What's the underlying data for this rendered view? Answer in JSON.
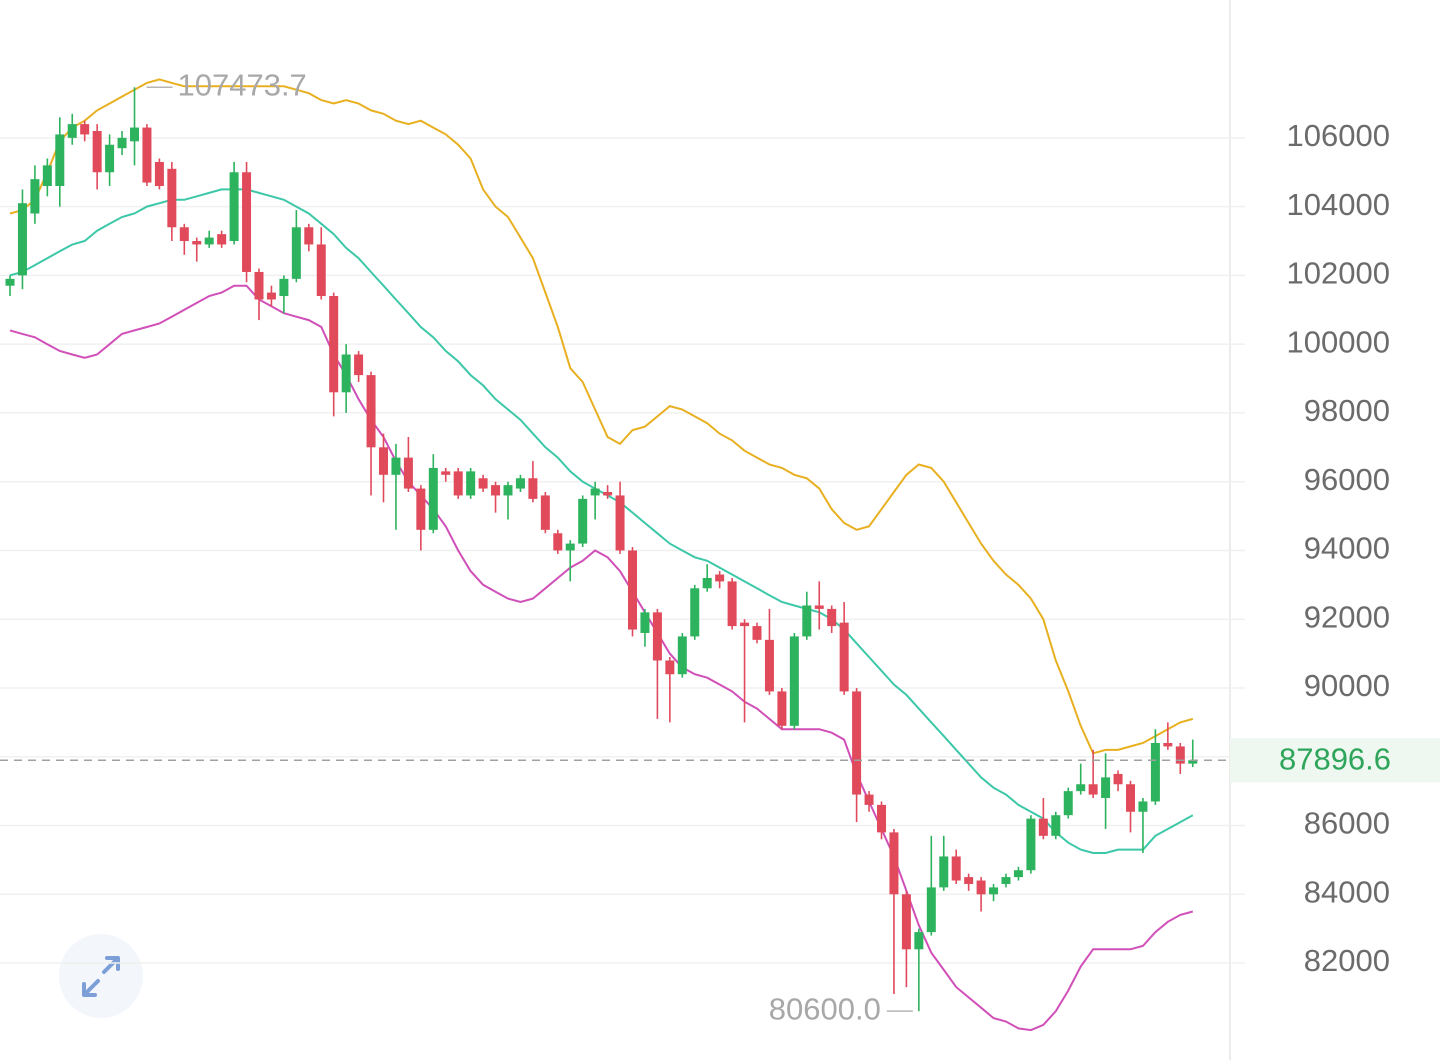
{
  "chart_data": {
    "type": "candlestick",
    "up_color": "#2db35d",
    "down_color": "#e04a5b",
    "open": [
      101700,
      102000,
      103800,
      104600,
      104600,
      106000,
      106400,
      106200,
      105000,
      105700,
      105900,
      106300,
      105300,
      105100,
      103400,
      103000,
      102900,
      103200,
      103000,
      105000,
      102100,
      101500,
      101400,
      101900,
      103400,
      102900,
      101400,
      98600,
      99700,
      99100,
      97000,
      96200,
      96700,
      95800,
      94600,
      96300,
      96300,
      95600,
      96100,
      95900,
      95600,
      95800,
      96100,
      95600,
      94500,
      94000,
      94200,
      95600,
      95700,
      95600,
      94000,
      91600,
      92200,
      90800,
      90400,
      91500,
      92900,
      93300,
      93100,
      91900,
      91800,
      91400,
      89900,
      88900,
      91500,
      92400,
      92300,
      91900,
      89900,
      86900,
      86600,
      85800,
      84000,
      82400,
      82900,
      84200,
      85100,
      84500,
      84400,
      84000,
      84300,
      84500,
      84700,
      86200,
      85700,
      86300,
      87000,
      87200,
      86800,
      87500,
      87200,
      86400,
      86700,
      88400,
      88300,
      87800
    ],
    "close": [
      101900,
      104100,
      104800,
      105200,
      106100,
      106400,
      106100,
      105000,
      105800,
      106000,
      106300,
      104700,
      104600,
      103400,
      103000,
      102900,
      103100,
      102900,
      105000,
      102100,
      101300,
      101300,
      101900,
      103400,
      102900,
      101400,
      98600,
      99700,
      99100,
      97000,
      96200,
      96700,
      95800,
      94600,
      96400,
      96200,
      95600,
      96300,
      95800,
      95600,
      95900,
      96100,
      95500,
      94600,
      94000,
      94200,
      95500,
      95800,
      95600,
      94000,
      91700,
      92200,
      90800,
      90400,
      91500,
      92900,
      93200,
      93100,
      91800,
      91800,
      91400,
      89900,
      88900,
      91500,
      92400,
      92300,
      91800,
      89900,
      86900,
      86600,
      85800,
      84000,
      82400,
      82900,
      84200,
      85100,
      84400,
      84300,
      84000,
      84200,
      84500,
      84700,
      86200,
      85700,
      86300,
      87000,
      87200,
      86900,
      87400,
      87200,
      86400,
      86700,
      88400,
      88300,
      87800,
      87896.6
    ],
    "high": [
      102000,
      104500,
      105200,
      105400,
      106600,
      106700,
      106500,
      106400,
      106100,
      106200,
      107473.7,
      106400,
      105400,
      105300,
      103500,
      103100,
      103300,
      103300,
      105300,
      105300,
      102200,
      101700,
      102000,
      103900,
      103500,
      103400,
      101500,
      100000,
      99800,
      99200,
      97400,
      97100,
      97300,
      95900,
      96800,
      96400,
      96400,
      96400,
      96200,
      96000,
      96000,
      96200,
      96600,
      95700,
      94600,
      94300,
      95600,
      96000,
      95900,
      96000,
      94100,
      92300,
      92300,
      90900,
      91600,
      93000,
      93600,
      93400,
      93200,
      92000,
      91900,
      92300,
      90000,
      91600,
      92800,
      93100,
      92400,
      92500,
      90000,
      87000,
      86700,
      85900,
      84100,
      83000,
      85700,
      85700,
      85300,
      84600,
      84500,
      84300,
      84600,
      84800,
      86300,
      86800,
      86400,
      87100,
      87800,
      88200,
      88100,
      87600,
      87300,
      86800,
      88800,
      89000,
      88400,
      88500
    ],
    "low": [
      101400,
      101600,
      103500,
      104300,
      104000,
      105800,
      105900,
      104500,
      104600,
      105500,
      105200,
      104600,
      104500,
      103000,
      102600,
      102400,
      102800,
      102800,
      102900,
      101800,
      100700,
      101100,
      100900,
      101800,
      102700,
      101300,
      97900,
      98000,
      98900,
      95600,
      95400,
      94600,
      95700,
      94000,
      94500,
      96000,
      95500,
      95500,
      95700,
      95100,
      94900,
      95700,
      95400,
      94500,
      93900,
      93100,
      94100,
      94900,
      95500,
      93900,
      91500,
      91200,
      89100,
      89000,
      90300,
      91400,
      92800,
      92900,
      91700,
      89000,
      91300,
      89800,
      88800,
      88800,
      91400,
      91700,
      91600,
      89800,
      86100,
      86400,
      85600,
      81100,
      81300,
      80600,
      82800,
      84100,
      84300,
      84100,
      83500,
      83800,
      84200,
      84400,
      84600,
      85600,
      85600,
      86200,
      86900,
      86800,
      85900,
      87000,
      85800,
      85200,
      86600,
      88200,
      87500,
      87700
    ],
    "bands": [
      {
        "color": "#e8b020",
        "values": [
          103800,
          103900,
          104200,
          105000,
          105900,
          106300,
          106500,
          106800,
          107000,
          107200,
          107400,
          107600,
          107700,
          107600,
          107500,
          107500,
          107500,
          107500,
          107500,
          107500,
          107500,
          107500,
          107500,
          107400,
          107300,
          107100,
          107000,
          107100,
          107000,
          106800,
          106700,
          106500,
          106400,
          106500,
          106300,
          106100,
          105800,
          105400,
          104500,
          104000,
          103700,
          103100,
          102500,
          101500,
          100500,
          99300,
          98900,
          98100,
          97300,
          97100,
          97500,
          97600,
          97900,
          98200,
          98100,
          97900,
          97700,
          97400,
          97200,
          96900,
          96700,
          96500,
          96400,
          96200,
          96100,
          95800,
          95200,
          94800,
          94600,
          94700,
          95200,
          95700,
          96200,
          96500,
          96400,
          96000,
          95400,
          94800,
          94200,
          93700,
          93300,
          93000,
          92600,
          92000,
          90800,
          89900,
          88900,
          88100,
          88200,
          88200,
          88300,
          88400,
          88600,
          88800,
          89000,
          89100
        ]
      },
      {
        "color": "#3cc8a8",
        "values": [
          102000,
          102100,
          102300,
          102500,
          102700,
          102900,
          103000,
          103300,
          103500,
          103700,
          103800,
          104000,
          104100,
          104200,
          104200,
          104300,
          104400,
          104500,
          104500,
          104500,
          104400,
          104300,
          104200,
          104000,
          103800,
          103500,
          103200,
          102800,
          102500,
          102100,
          101700,
          101300,
          100900,
          100500,
          100200,
          99800,
          99500,
          99100,
          98800,
          98400,
          98100,
          97800,
          97400,
          97000,
          96700,
          96300,
          96000,
          95800,
          95600,
          95400,
          95100,
          94800,
          94500,
          94200,
          94000,
          93800,
          93700,
          93500,
          93300,
          93100,
          92900,
          92700,
          92500,
          92400,
          92300,
          92200,
          92000,
          91700,
          91300,
          90900,
          90500,
          90100,
          89800,
          89400,
          89000,
          88600,
          88200,
          87800,
          87400,
          87100,
          86900,
          86600,
          86400,
          86200,
          85800,
          85500,
          85300,
          85200,
          85200,
          85300,
          85300,
          85300,
          85700,
          85900,
          86100,
          86300
        ]
      },
      {
        "color": "#d14fb8",
        "values": [
          100400,
          100300,
          100200,
          100000,
          99800,
          99700,
          99600,
          99700,
          100000,
          100300,
          100400,
          100500,
          100600,
          100800,
          101000,
          101200,
          101400,
          101500,
          101700,
          101700,
          101300,
          101100,
          100900,
          100800,
          100700,
          100500,
          99700,
          99100,
          98400,
          97800,
          97300,
          96600,
          96000,
          95600,
          95200,
          94700,
          94000,
          93400,
          93000,
          92800,
          92600,
          92500,
          92600,
          92900,
          93200,
          93500,
          93700,
          94000,
          93800,
          93400,
          92800,
          92200,
          91600,
          91000,
          90600,
          90400,
          90300,
          90100,
          89900,
          89600,
          89400,
          89100,
          88800,
          88800,
          88800,
          88800,
          88700,
          88500,
          87500,
          86700,
          85900,
          85100,
          84100,
          83100,
          82300,
          81800,
          81300,
          81000,
          80700,
          80400,
          80300,
          80100,
          80050,
          80200,
          80600,
          81200,
          81900,
          82400,
          82400,
          82400,
          82400,
          82500,
          82900,
          83200,
          83400,
          83500
        ]
      }
    ],
    "min_label": {
      "value": 80600,
      "label": "80600.0"
    },
    "last_price_color": "#2ea55a",
    "ylim": [
      79180,
      110010
    ],
    "yticks": [
      82000,
      84000,
      86000,
      88000,
      90000,
      92000,
      94000,
      96000,
      98000,
      100000,
      102000,
      104000,
      106000
    ],
    "grid": true
  }
}
